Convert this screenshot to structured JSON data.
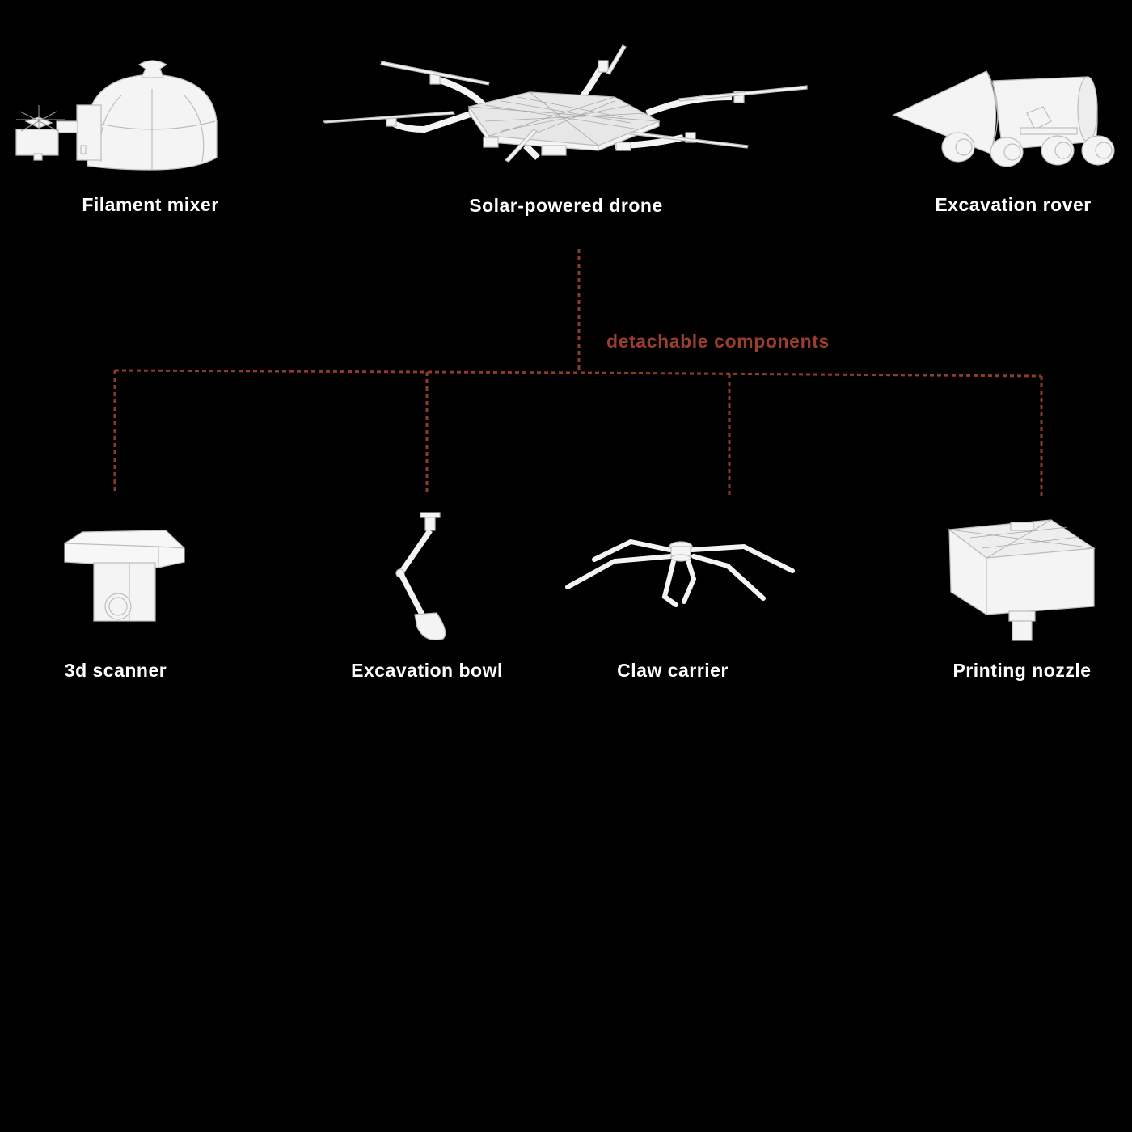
{
  "colors": {
    "background": "#000000",
    "object_fill": "#f4f4f4",
    "object_stroke": "#bdbdbd",
    "connector": "#8e3a2c",
    "accent_text": "#9a3e2e",
    "label_text": "#ffffff"
  },
  "machines": [
    {
      "label": "Filament mixer",
      "icon": "filament-mixer-icon"
    },
    {
      "label": "Solar-powered drone",
      "icon": "drone-icon"
    },
    {
      "label": "Excavation rover",
      "icon": "rover-icon"
    }
  ],
  "connector_label": "detachable components",
  "components": [
    {
      "label": "3d scanner",
      "icon": "scanner-icon"
    },
    {
      "label": "Excavation bowl",
      "icon": "excavation-bowl-icon"
    },
    {
      "label": "Claw carrier",
      "icon": "claw-carrier-icon"
    },
    {
      "label": "Printing nozzle",
      "icon": "printing-nozzle-icon"
    }
  ]
}
